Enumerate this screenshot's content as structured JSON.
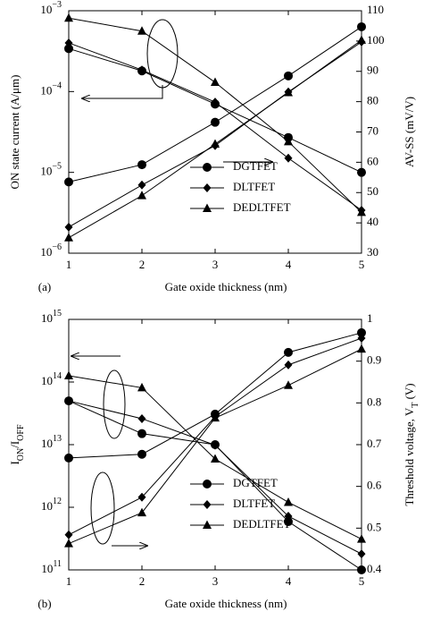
{
  "chart_data": [
    {
      "type": "line",
      "panel_label": "(a)",
      "xlabel": "Gate oxide thickness (nm)",
      "ylabel": [
        {
          "text": "ON state current (A/μm)"
        }
      ],
      "y2label": [
        {
          "text": "AV-SS (mV/V)"
        }
      ],
      "x": [
        1,
        2,
        3,
        4,
        5
      ],
      "xlim": [
        1,
        5
      ],
      "xticks": [
        1,
        2,
        3,
        4,
        5
      ],
      "ylog": true,
      "ylim": [
        1e-06,
        0.001
      ],
      "yticks": [
        {
          "value": 1e-06,
          "label": "10",
          "exponent": "−6"
        },
        {
          "value": 1e-05,
          "label": "10",
          "exponent": "−5"
        },
        {
          "value": 0.0001,
          "label": "10",
          "exponent": "−4"
        },
        {
          "value": 0.001,
          "label": "10",
          "exponent": "−3"
        }
      ],
      "y2lim": [
        30,
        110
      ],
      "y2ticks": [
        30,
        40,
        50,
        60,
        70,
        80,
        90,
        100,
        110
      ],
      "legend": "lower right",
      "series": [
        {
          "name": "DGTFET",
          "marker": "circle",
          "color": "#000000",
          "values": [
            0.00034,
            0.00018,
            7e-05,
            2.7e-05,
            1e-05
          ]
        },
        {
          "name": "DLTFET",
          "marker": "diamond",
          "color": "#000000",
          "values": [
            0.0004,
            0.000185,
            7.4e-05,
            1.5e-05,
            3.4e-06
          ]
        },
        {
          "name": "DEDLTFET",
          "marker": "triangle",
          "color": "#000000",
          "values": [
            0.00081,
            0.00056,
            0.00013,
            2.4e-05,
            3.2e-06
          ]
        },
        {
          "name": "DGTFET",
          "marker": "circle",
          "color": "#000000",
          "axis": "y2",
          "values": [
            53.5,
            59.2,
            73.2,
            88.5,
            104.7
          ]
        },
        {
          "name": "DLTFET",
          "marker": "diamond",
          "color": "#000000",
          "axis": "y2",
          "values": [
            38.6,
            52.5,
            65.5,
            83.2,
            99.7
          ]
        },
        {
          "name": "DEDLTFET",
          "marker": "triangle",
          "color": "#000000",
          "axis": "y2",
          "values": [
            35.1,
            49,
            66,
            83,
            100.3
          ]
        }
      ]
    },
    {
      "type": "line",
      "panel_label": "(b)",
      "xlabel": "Gate oxide thickness (nm)",
      "ylabel": [
        {
          "text": "I"
        },
        {
          "text": "ON",
          "sub": true
        },
        {
          "text": "/I"
        },
        {
          "text": "OFF",
          "sub": true
        }
      ],
      "y2label": [
        {
          "text": "Threshold voltage, V"
        },
        {
          "text": "T",
          "sub": true
        },
        {
          "text": " (V)"
        }
      ],
      "x": [
        1,
        2,
        3,
        4,
        5
      ],
      "xlim": [
        1,
        5
      ],
      "xticks": [
        1,
        2,
        3,
        4,
        5
      ],
      "ylog": true,
      "ylim": [
        100000000000,
        1000000000000000
      ],
      "yticks": [
        {
          "value": 100000000000,
          "label": "10",
          "exponent": "11"
        },
        {
          "value": 1000000000000,
          "label": "10",
          "exponent": "12"
        },
        {
          "value": 10000000000000,
          "label": "10",
          "exponent": "13"
        },
        {
          "value": 100000000000000,
          "label": "10",
          "exponent": "14"
        },
        {
          "value": 1000000000000000,
          "label": "10",
          "exponent": "15"
        }
      ],
      "y2lim": [
        0.4,
        1.0
      ],
      "y2ticks": [
        0.4,
        0.5,
        0.6,
        0.7,
        0.8,
        0.9,
        1.0
      ],
      "legend": "lower right",
      "series": [
        {
          "name": "DGTFET",
          "marker": "circle",
          "color": "#000000",
          "values": [
            50000000000000,
            15000000000000,
            10000000000000,
            590000000000,
            100000000000
          ]
        },
        {
          "name": "DLTFET",
          "marker": "diamond",
          "color": "#000000",
          "values": [
            50000000000000,
            26000000000000,
            9800000000000,
            720000000000,
            180000000000
          ]
        },
        {
          "name": "DEDLTFET",
          "marker": "triangle",
          "color": "#000000",
          "values": [
            126000000000000,
            81000000000000,
            5900000000000,
            1200000000000,
            310000000000
          ]
        },
        {
          "name": "DGTFET",
          "marker": "circle",
          "color": "#000000",
          "axis": "y2",
          "values": [
            0.668,
            0.677,
            0.773,
            0.921,
            0.968
          ]
        },
        {
          "name": "DLTFET",
          "marker": "diamond",
          "color": "#000000",
          "axis": "y2",
          "values": [
            0.484,
            0.574,
            0.767,
            0.891,
            0.955
          ]
        },
        {
          "name": "DEDLTFET",
          "marker": "triangle",
          "color": "#000000",
          "axis": "y2",
          "values": [
            0.463,
            0.537,
            0.764,
            0.842,
            0.929
          ]
        }
      ]
    }
  ]
}
